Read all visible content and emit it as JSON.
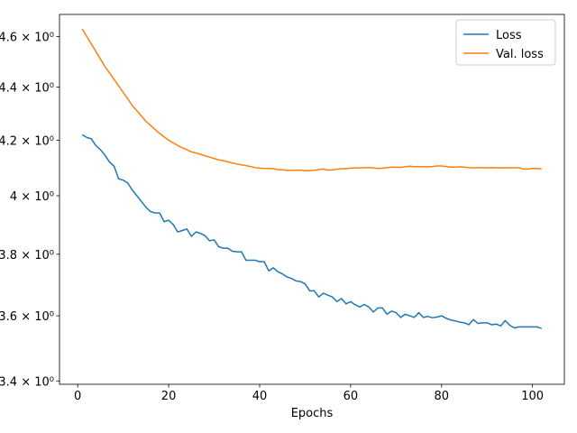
{
  "chart_data": {
    "type": "line",
    "title": "",
    "xlabel": "Epochs",
    "ylabel": "",
    "yscale": "log",
    "xlim": [
      -4,
      107
    ],
    "ylim": [
      3.39,
      4.69
    ],
    "x_ticks": [
      0,
      20,
      40,
      60,
      80,
      100
    ],
    "x_tick_labels": [
      "0",
      "20",
      "40",
      "60",
      "80",
      "100"
    ],
    "y_ticks": [
      3.4,
      3.6,
      3.8,
      4.0,
      4.2,
      4.4,
      4.6
    ],
    "y_tick_labels": [
      "3.4 × 10⁰",
      "3.6 × 10⁰",
      "3.8 × 10⁰",
      "4 × 10⁰",
      "4.2 × 10⁰",
      "4.4 × 10⁰",
      "4.6 × 10⁰"
    ],
    "grid": false,
    "legend_position": "top-right",
    "series": [
      {
        "name": "Loss",
        "color": "#1f77b4",
        "x": [
          1,
          2,
          3,
          4,
          5,
          6,
          7,
          8,
          9,
          10,
          11,
          12,
          13,
          14,
          15,
          16,
          17,
          18,
          19,
          20,
          21,
          22,
          23,
          24,
          25,
          26,
          27,
          28,
          29,
          30,
          31,
          32,
          33,
          34,
          35,
          36,
          37,
          38,
          39,
          40,
          41,
          42,
          43,
          44,
          45,
          46,
          47,
          48,
          49,
          50,
          51,
          52,
          53,
          54,
          55,
          56,
          57,
          58,
          59,
          60,
          61,
          62,
          63,
          64,
          65,
          66,
          67,
          68,
          69,
          70,
          71,
          72,
          73,
          74,
          75,
          76,
          77,
          78,
          79,
          80,
          81,
          82,
          83,
          84,
          85,
          86,
          87,
          88,
          89,
          90,
          91,
          92,
          93,
          94,
          95,
          96,
          97,
          98,
          99,
          100,
          101,
          102
        ],
        "y": [
          4.22,
          4.21,
          4.205,
          4.18,
          4.165,
          4.145,
          4.12,
          4.105,
          4.06,
          4.055,
          4.045,
          4.02,
          4.0,
          3.98,
          3.96,
          3.945,
          3.94,
          3.94,
          3.91,
          3.915,
          3.9,
          3.875,
          3.88,
          3.885,
          3.86,
          3.875,
          3.87,
          3.862,
          3.845,
          3.848,
          3.825,
          3.82,
          3.82,
          3.81,
          3.808,
          3.808,
          3.78,
          3.78,
          3.78,
          3.775,
          3.775,
          3.745,
          3.755,
          3.742,
          3.735,
          3.725,
          3.72,
          3.712,
          3.71,
          3.702,
          3.68,
          3.68,
          3.66,
          3.672,
          3.666,
          3.66,
          3.645,
          3.655,
          3.638,
          3.645,
          3.635,
          3.628,
          3.636,
          3.628,
          3.612,
          3.625,
          3.625,
          3.605,
          3.615,
          3.61,
          3.595,
          3.605,
          3.6,
          3.595,
          3.61,
          3.595,
          3.598,
          3.594,
          3.596,
          3.6,
          3.592,
          3.587,
          3.584,
          3.58,
          3.578,
          3.572,
          3.588,
          3.576,
          3.578,
          3.578,
          3.572,
          3.574,
          3.568,
          3.585,
          3.57,
          3.562,
          3.565,
          3.565,
          3.565,
          3.565,
          3.565,
          3.56
        ]
      },
      {
        "name": "Val. loss",
        "color": "#ff7f0e",
        "x": [
          1,
          2,
          3,
          4,
          5,
          6,
          7,
          8,
          9,
          10,
          11,
          12,
          13,
          14,
          15,
          16,
          17,
          18,
          19,
          20,
          21,
          22,
          23,
          24,
          25,
          26,
          27,
          28,
          29,
          30,
          31,
          32,
          33,
          34,
          35,
          36,
          37,
          38,
          39,
          40,
          41,
          42,
          43,
          44,
          45,
          46,
          47,
          48,
          49,
          50,
          51,
          52,
          53,
          54,
          55,
          56,
          57,
          58,
          59,
          60,
          61,
          62,
          63,
          64,
          65,
          66,
          67,
          68,
          69,
          70,
          71,
          72,
          73,
          74,
          75,
          76,
          77,
          78,
          79,
          80,
          81,
          82,
          83,
          84,
          85,
          86,
          87,
          88,
          89,
          90,
          91,
          92,
          93,
          94,
          95,
          96,
          97,
          98,
          99,
          100,
          101,
          102
        ],
        "y": [
          4.63,
          4.6,
          4.57,
          4.54,
          4.51,
          4.48,
          4.455,
          4.43,
          4.405,
          4.38,
          4.355,
          4.33,
          4.31,
          4.29,
          4.27,
          4.255,
          4.24,
          4.225,
          4.212,
          4.2,
          4.19,
          4.18,
          4.172,
          4.165,
          4.157,
          4.153,
          4.148,
          4.143,
          4.138,
          4.133,
          4.128,
          4.125,
          4.121,
          4.117,
          4.113,
          4.11,
          4.107,
          4.104,
          4.1,
          4.098,
          4.097,
          4.097,
          4.096,
          4.093,
          4.092,
          4.09,
          4.09,
          4.09,
          4.091,
          4.089,
          4.089,
          4.09,
          4.093,
          4.095,
          4.091,
          4.092,
          4.094,
          4.096,
          4.096,
          4.098,
          4.099,
          4.099,
          4.1,
          4.1,
          4.099,
          4.097,
          4.098,
          4.1,
          4.102,
          4.101,
          4.101,
          4.103,
          4.105,
          4.103,
          4.104,
          4.103,
          4.103,
          4.104,
          4.106,
          4.106,
          4.104,
          4.102,
          4.102,
          4.103,
          4.102,
          4.1,
          4.099,
          4.1,
          4.1,
          4.099,
          4.1,
          4.099,
          4.1,
          4.099,
          4.1,
          4.099,
          4.1,
          4.095,
          4.095,
          4.097,
          4.097,
          4.095
        ]
      }
    ]
  }
}
